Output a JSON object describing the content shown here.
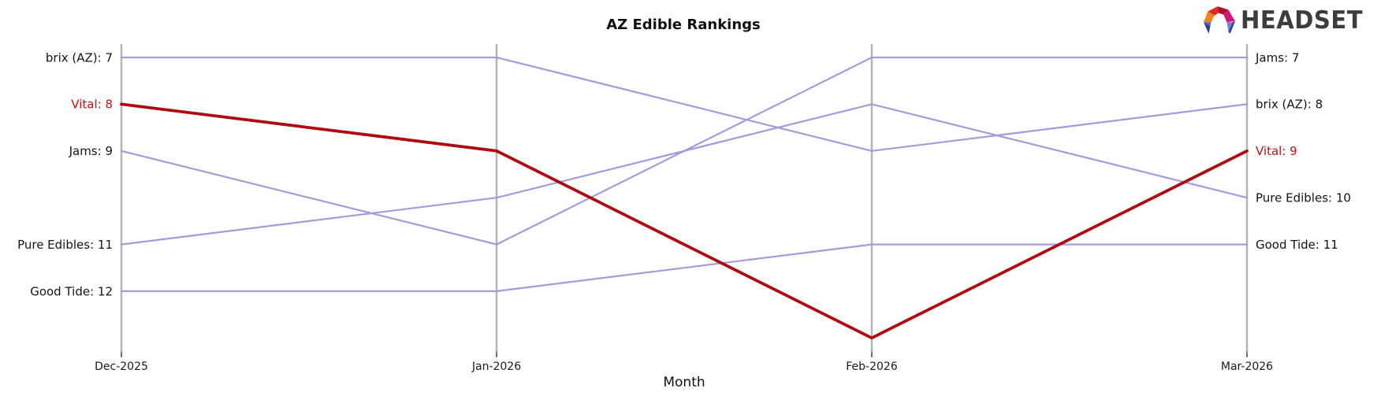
{
  "title": "AZ Edible Rankings",
  "xlabel": "Month",
  "logo": {
    "text": "HEADSET"
  },
  "chart_data": {
    "type": "line",
    "subtype": "bump-ranking",
    "title": "AZ Edible Rankings",
    "xlabel": "Month",
    "ylabel": "",
    "categories": [
      "Dec-2025",
      "Jan-2026",
      "Feb-2026",
      "Mar-2026"
    ],
    "rank_axis": {
      "min": 7,
      "max": 13,
      "inverted": true,
      "lower_is_better": true
    },
    "grid": false,
    "legend": "none (direct labels at line ends)",
    "series": [
      {
        "name": "brix (AZ)",
        "values": [
          7,
          7,
          9,
          8
        ],
        "color": "#a39cda",
        "highlight": false,
        "left_label": "brix (AZ): 7",
        "right_label": "brix (AZ): 8"
      },
      {
        "name": "Vital",
        "values": [
          8,
          9,
          13,
          9
        ],
        "color": "#ad0d11",
        "highlight": true,
        "left_label": "Vital: 8",
        "right_label": "Vital: 9"
      },
      {
        "name": "Jams",
        "values": [
          9,
          11,
          7,
          7
        ],
        "color": "#a39cda",
        "highlight": false,
        "left_label": "Jams: 9",
        "right_label": "Jams: 7"
      },
      {
        "name": "Pure Edibles",
        "values": [
          11,
          10,
          8,
          10
        ],
        "color": "#a39cda",
        "highlight": false,
        "left_label": "Pure Edibles: 11",
        "right_label": "Pure Edibles: 10"
      },
      {
        "name": "Good Tide",
        "values": [
          12,
          12,
          11,
          11
        ],
        "color": "#a39cda",
        "highlight": false,
        "left_label": "Good Tide: 12",
        "right_label": "Good Tide: 11"
      }
    ]
  },
  "colors": {
    "line_purple": "#a39cda",
    "line_red": "#ad0d11",
    "label_red": "#bb1417",
    "label_dark": "#141414",
    "axis_gray": "#b4b4b4",
    "tick_dark": "#2a2a2a",
    "logo_text": "#3d3d3d",
    "logo": {
      "orange": "#f5821f",
      "red": "#e02b22",
      "crimson": "#ae0f2e",
      "magenta": "#d4167a",
      "navy": "#2b3a9c",
      "slate": "#5e68cc",
      "periwinkle": "#7b79da"
    }
  }
}
